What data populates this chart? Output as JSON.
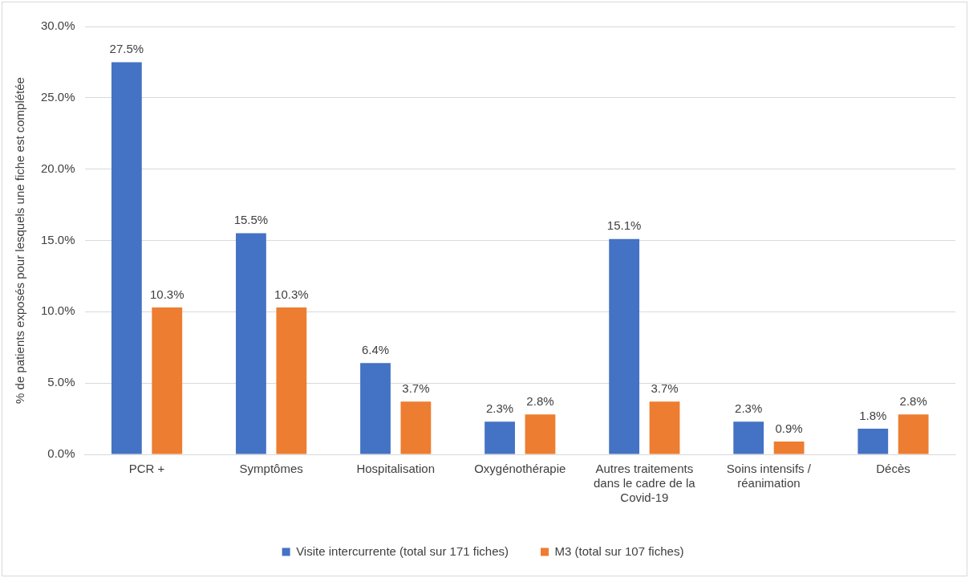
{
  "chart_data": {
    "type": "bar",
    "ylabel": "% de patients exposés pour lesquels une fiche est complétée",
    "categories": [
      "PCR +",
      "Symptômes",
      "Hospitalisation",
      "Oxygénothérapie",
      "Autres traitements dans le cadre de la Covid-19",
      "Soins intensifs / réanimation",
      "Décès"
    ],
    "series": [
      {
        "name": "Visite intercurrente (total sur 171 fiches)",
        "color": "#4472c4",
        "values": [
          27.5,
          15.5,
          6.4,
          2.3,
          15.1,
          2.3,
          1.8
        ],
        "value_labels": [
          "27.5%",
          "15.5%",
          "6.4%",
          "2.3%",
          "15.1%",
          "2.3%",
          "1.8%"
        ]
      },
      {
        "name": "M3 (total sur 107 fiches)",
        "color": "#ed7d31",
        "values": [
          10.3,
          10.3,
          3.7,
          2.8,
          3.7,
          0.9,
          2.8
        ],
        "value_labels": [
          "10.3%",
          "10.3%",
          "3.7%",
          "2.8%",
          "3.7%",
          "0.9%",
          "2.8%"
        ]
      }
    ],
    "ylim": [
      0,
      30
    ],
    "yticks": [
      {
        "value": 0,
        "label": "0.0%"
      },
      {
        "value": 5,
        "label": "5.0%"
      },
      {
        "value": 10,
        "label": "10.0%"
      },
      {
        "value": 15,
        "label": "15.0%"
      },
      {
        "value": 20,
        "label": "20.0%"
      },
      {
        "value": 25,
        "label": "25.0%"
      },
      {
        "value": 30,
        "label": "30.0%"
      }
    ],
    "grid": "y",
    "legend": "bottom"
  }
}
